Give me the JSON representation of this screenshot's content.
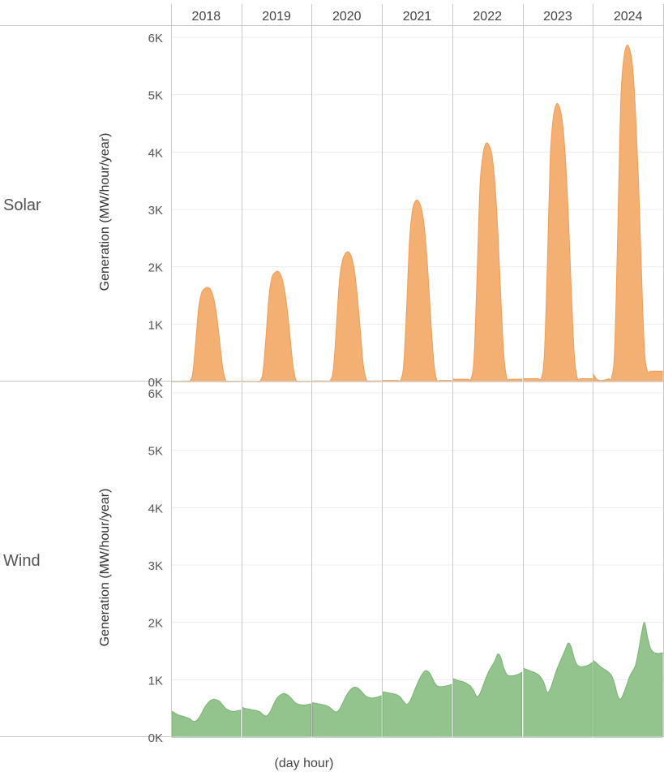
{
  "chart_data": {
    "type": "area",
    "columns": [
      "2018",
      "2019",
      "2020",
      "2021",
      "2022",
      "2023",
      "2024"
    ],
    "x_per_column": [
      0,
      1,
      2,
      3,
      4,
      5,
      6,
      7,
      8,
      9,
      10,
      11,
      12,
      13,
      14,
      15,
      16,
      17,
      18,
      19,
      20,
      21,
      22,
      23
    ],
    "xlabel": "(day hour)",
    "ylabel": "Generation (MW/hour/year)",
    "ylim": [
      0,
      6000
    ],
    "yticks": [
      0,
      1000,
      2000,
      3000,
      4000,
      5000,
      6000
    ],
    "ytick_labels": [
      "0K",
      "1K",
      "2K",
      "3K",
      "4K",
      "5K",
      "6K"
    ],
    "grid": true,
    "rows": [
      {
        "name": "Solar",
        "color": "#f4b073",
        "stroke": "#ee9d55",
        "values": {
          "2018": [
            0,
            0,
            0,
            0,
            0,
            0,
            10,
            150,
            700,
            1300,
            1550,
            1620,
            1640,
            1600,
            1450,
            1150,
            700,
            250,
            20,
            0,
            0,
            0,
            0,
            0
          ],
          "2019": [
            0,
            0,
            0,
            0,
            0,
            0,
            10,
            180,
            800,
            1500,
            1820,
            1900,
            1920,
            1850,
            1650,
            1300,
            800,
            280,
            30,
            0,
            0,
            0,
            0,
            0
          ],
          "2020": [
            10,
            10,
            10,
            10,
            10,
            10,
            20,
            220,
            950,
            1750,
            2100,
            2230,
            2260,
            2180,
            1950,
            1500,
            900,
            300,
            40,
            10,
            10,
            10,
            10,
            10
          ],
          "2021": [
            20,
            20,
            20,
            20,
            20,
            20,
            30,
            300,
            1300,
            2500,
            3000,
            3150,
            3140,
            3000,
            2650,
            2000,
            1150,
            380,
            40,
            20,
            20,
            20,
            20,
            20
          ],
          "2022": [
            40,
            40,
            40,
            40,
            40,
            40,
            50,
            400,
            1800,
            3400,
            3950,
            4150,
            4120,
            3950,
            3450,
            2600,
            1450,
            450,
            60,
            40,
            40,
            40,
            40,
            40
          ],
          "2023": [
            50,
            50,
            50,
            50,
            50,
            50,
            60,
            450,
            2000,
            3900,
            4600,
            4830,
            4800,
            4550,
            3950,
            2950,
            1650,
            500,
            70,
            50,
            50,
            50,
            50,
            50
          ],
          "2024": [
            120,
            40,
            20,
            20,
            30,
            50,
            70,
            550,
            2500,
            4800,
            5600,
            5850,
            5800,
            5500,
            4700,
            3500,
            1900,
            550,
            180,
            180,
            180,
            180,
            180,
            180
          ]
        }
      },
      {
        "name": "Wind",
        "color": "#93c48e",
        "stroke": "#7bb275",
        "values": {
          "2018": [
            450,
            420,
            390,
            370,
            360,
            340,
            320,
            280,
            280,
            330,
            420,
            520,
            590,
            640,
            660,
            650,
            620,
            560,
            500,
            470,
            450,
            450,
            460,
            470
          ],
          "2019": [
            520,
            500,
            490,
            480,
            470,
            460,
            440,
            390,
            370,
            410,
            510,
            620,
            700,
            740,
            760,
            740,
            700,
            640,
            590,
            570,
            560,
            560,
            570,
            580
          ],
          "2020": [
            600,
            590,
            580,
            570,
            560,
            540,
            510,
            460,
            440,
            480,
            580,
            690,
            780,
            840,
            870,
            860,
            820,
            760,
            710,
            690,
            680,
            690,
            700,
            720
          ],
          "2021": [
            790,
            780,
            770,
            760,
            750,
            730,
            690,
            620,
            570,
            620,
            730,
            860,
            980,
            1080,
            1150,
            1150,
            1090,
            980,
            900,
            880,
            880,
            890,
            900,
            920
          ],
          "2022": [
            1020,
            1000,
            980,
            970,
            950,
            920,
            880,
            800,
            700,
            760,
            890,
            1030,
            1150,
            1240,
            1330,
            1450,
            1380,
            1200,
            1090,
            1070,
            1070,
            1080,
            1100,
            1130
          ],
          "2023": [
            1200,
            1180,
            1160,
            1140,
            1120,
            1090,
            1030,
            930,
            780,
            840,
            990,
            1150,
            1280,
            1400,
            1520,
            1640,
            1570,
            1380,
            1260,
            1230,
            1230,
            1240,
            1260,
            1300
          ],
          "2024": [
            1330,
            1290,
            1240,
            1200,
            1170,
            1130,
            1070,
            930,
            730,
            660,
            760,
            900,
            1050,
            1150,
            1250,
            1500,
            1800,
            2000,
            1750,
            1550,
            1480,
            1460,
            1460,
            1470
          ]
        }
      }
    ]
  }
}
